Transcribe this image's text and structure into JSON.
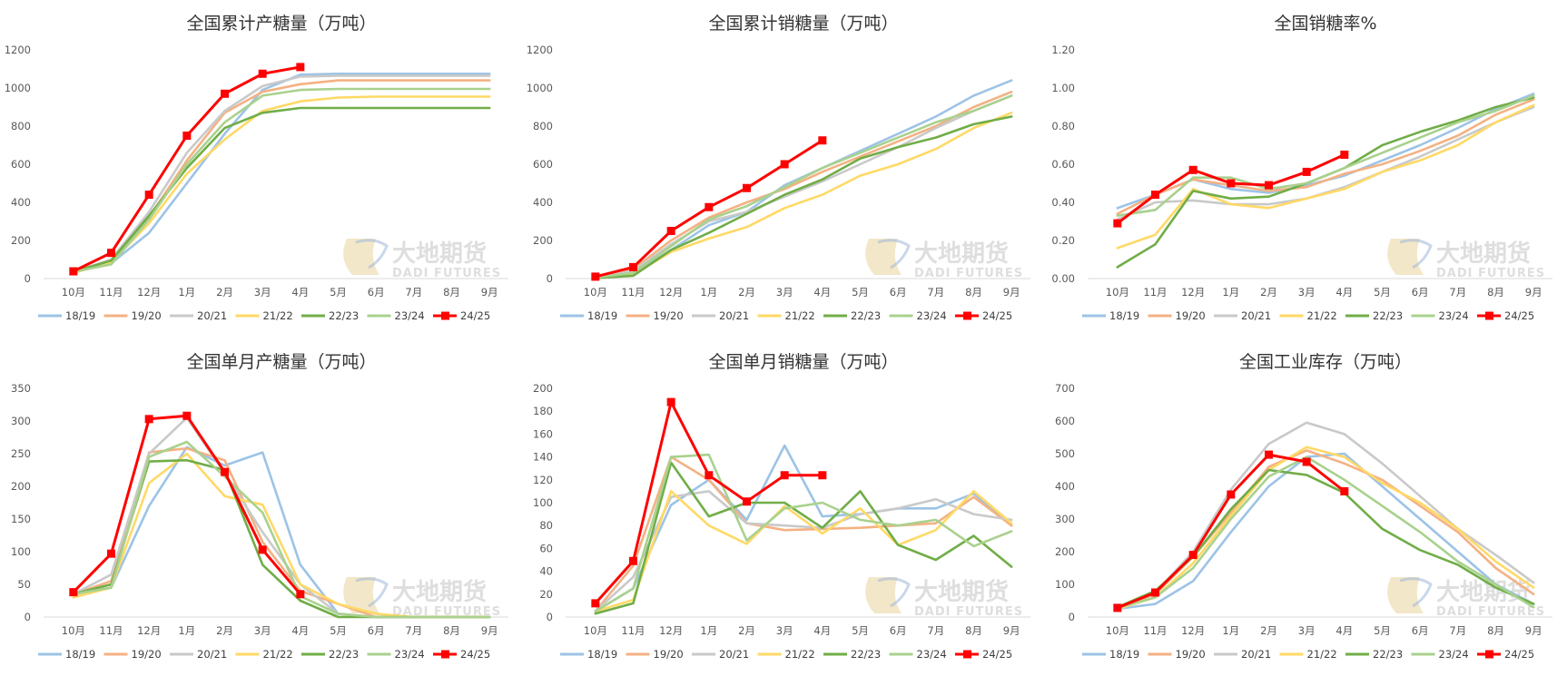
{
  "months": [
    "10月",
    "11月",
    "12月",
    "1月",
    "2月",
    "3月",
    "4月",
    "5月",
    "6月",
    "7月",
    "8月",
    "9月"
  ],
  "watermark": {
    "cn": "大地期货",
    "en": "DADI FUTURES"
  },
  "series_colors": {
    "18/19": "#9dc3e6",
    "19/20": "#f4b183",
    "20/21": "#c9c9c9",
    "21/22": "#ffd966",
    "22/23": "#70ad47",
    "23/24": "#a9d18e",
    "24/25": "#ff0000"
  },
  "chart_data": [
    {
      "type": "line",
      "title": "全国累计产糖量（万吨）",
      "ylim": [
        0,
        1200
      ],
      "yticks": [
        "0",
        "200",
        "400",
        "600",
        "800",
        "1000",
        "1200"
      ],
      "series": [
        {
          "name": "18/19",
          "values": [
            35,
            80,
            240,
            500,
            760,
            990,
            1070,
            1075,
            1075,
            1075,
            1075,
            1075
          ]
        },
        {
          "name": "19/20",
          "values": [
            35,
            95,
            320,
            620,
            870,
            980,
            1020,
            1040,
            1040,
            1040,
            1040,
            1040
          ]
        },
        {
          "name": "20/21",
          "values": [
            35,
            100,
            350,
            660,
            880,
            1010,
            1060,
            1065,
            1065,
            1065,
            1065,
            1065
          ]
        },
        {
          "name": "21/22",
          "values": [
            30,
            85,
            290,
            550,
            730,
            880,
            930,
            950,
            955,
            955,
            955,
            955
          ]
        },
        {
          "name": "22/23",
          "values": [
            35,
            95,
            330,
            580,
            790,
            870,
            895,
            895,
            895,
            895,
            895,
            895
          ]
        },
        {
          "name": "23/24",
          "values": [
            35,
            75,
            310,
            600,
            820,
            960,
            990,
            995,
            995,
            995,
            995,
            995
          ]
        },
        {
          "name": "24/25",
          "values": [
            38,
            135,
            440,
            750,
            970,
            1075,
            1110
          ]
        }
      ]
    },
    {
      "type": "line",
      "title": "全国累计销糖量（万吨）",
      "ylim": [
        0,
        1200
      ],
      "yticks": [
        "0",
        "200",
        "400",
        "600",
        "800",
        "1000",
        "1200"
      ],
      "series": [
        {
          "name": "18/19",
          "values": [
            5,
            25,
            150,
            280,
            350,
            490,
            580,
            670,
            760,
            850,
            960,
            1040
          ]
        },
        {
          "name": "19/20",
          "values": [
            5,
            50,
            200,
            320,
            400,
            470,
            560,
            640,
            720,
            800,
            900,
            980
          ]
        },
        {
          "name": "20/21",
          "values": [
            5,
            40,
            180,
            300,
            350,
            430,
            510,
            600,
            690,
            790,
            880,
            960
          ]
        },
        {
          "name": "21/22",
          "values": [
            5,
            20,
            140,
            210,
            270,
            370,
            440,
            540,
            600,
            680,
            790,
            870
          ]
        },
        {
          "name": "22/23",
          "values": [
            3,
            15,
            150,
            240,
            340,
            440,
            520,
            630,
            690,
            740,
            810,
            850
          ]
        },
        {
          "name": "23/24",
          "values": [
            5,
            30,
            170,
            310,
            380,
            480,
            580,
            660,
            740,
            820,
            880,
            960
          ]
        },
        {
          "name": "24/25",
          "values": [
            10,
            60,
            250,
            375,
            475,
            600,
            725
          ]
        }
      ]
    },
    {
      "type": "line",
      "title": "全国销糖率%",
      "ylim": [
        0,
        1.2
      ],
      "yticks": [
        "0.00",
        "0.20",
        "0.40",
        "0.60",
        "0.80",
        "1.00",
        "1.20"
      ],
      "series": [
        {
          "name": "18/19",
          "values": [
            0.37,
            0.44,
            0.52,
            0.47,
            0.45,
            0.49,
            0.54,
            0.62,
            0.7,
            0.79,
            0.89,
            0.97
          ]
        },
        {
          "name": "19/20",
          "values": [
            0.34,
            0.44,
            0.52,
            0.49,
            0.46,
            0.48,
            0.55,
            0.6,
            0.67,
            0.75,
            0.86,
            0.94
          ]
        },
        {
          "name": "20/21",
          "values": [
            0.31,
            0.4,
            0.41,
            0.39,
            0.39,
            0.42,
            0.48,
            0.56,
            0.64,
            0.73,
            0.82,
            0.9
          ]
        },
        {
          "name": "21/22",
          "values": [
            0.16,
            0.23,
            0.47,
            0.39,
            0.37,
            0.42,
            0.47,
            0.56,
            0.62,
            0.7,
            0.82,
            0.91
          ]
        },
        {
          "name": "22/23",
          "values": [
            0.06,
            0.18,
            0.46,
            0.42,
            0.43,
            0.5,
            0.58,
            0.7,
            0.77,
            0.83,
            0.9,
            0.95
          ]
        },
        {
          "name": "23/24",
          "values": [
            0.33,
            0.36,
            0.53,
            0.53,
            0.47,
            0.5,
            0.58,
            0.66,
            0.74,
            0.82,
            0.88,
            0.96
          ]
        },
        {
          "name": "24/25",
          "values": [
            0.29,
            0.44,
            0.57,
            0.5,
            0.49,
            0.56,
            0.65
          ]
        }
      ]
    },
    {
      "type": "line",
      "title": "全国单月产糖量（万吨）",
      "ylim": [
        0,
        350
      ],
      "yticks": [
        "0",
        "50",
        "100",
        "150",
        "200",
        "250",
        "300",
        "350"
      ],
      "series": [
        {
          "name": "18/19",
          "values": [
            35,
            45,
            170,
            260,
            232,
            252,
            80,
            5,
            0,
            0,
            0,
            0
          ]
        },
        {
          "name": "19/20",
          "values": [
            35,
            55,
            252,
            258,
            240,
            115,
            40,
            20,
            0,
            0,
            0,
            0
          ]
        },
        {
          "name": "20/21",
          "values": [
            35,
            65,
            250,
            305,
            220,
            130,
            50,
            5,
            0,
            0,
            0,
            0
          ]
        },
        {
          "name": "21/22",
          "values": [
            30,
            45,
            205,
            250,
            185,
            172,
            50,
            20,
            5,
            0,
            0,
            0
          ]
        },
        {
          "name": "22/23",
          "values": [
            35,
            50,
            238,
            240,
            225,
            80,
            25,
            0,
            0,
            0,
            0,
            0
          ]
        },
        {
          "name": "23/24",
          "values": [
            35,
            45,
            245,
            268,
            215,
            160,
            32,
            5,
            0,
            0,
            0,
            0
          ]
        },
        {
          "name": "24/25",
          "values": [
            38,
            97,
            303,
            308,
            222,
            103,
            35
          ]
        }
      ]
    },
    {
      "type": "line",
      "title": "全国单月销糖量（万吨）",
      "ylim": [
        0,
        200
      ],
      "yticks": [
        "0",
        "20",
        "40",
        "60",
        "80",
        "100",
        "120",
        "140",
        "160",
        "180",
        "200"
      ],
      "series": [
        {
          "name": "18/19",
          "values": [
            5,
            25,
            98,
            120,
            85,
            150,
            88,
            90,
            95,
            95,
            108,
            80
          ]
        },
        {
          "name": "19/20",
          "values": [
            5,
            45,
            140,
            120,
            82,
            76,
            77,
            78,
            80,
            82,
            105,
            80
          ]
        },
        {
          "name": "20/21",
          "values": [
            5,
            35,
            105,
            110,
            82,
            80,
            78,
            90,
            95,
            103,
            90,
            85
          ]
        },
        {
          "name": "21/22",
          "values": [
            5,
            15,
            110,
            80,
            64,
            97,
            73,
            95,
            63,
            76,
            110,
            82
          ]
        },
        {
          "name": "22/23",
          "values": [
            3,
            12,
            135,
            88,
            100,
            100,
            78,
            110,
            63,
            50,
            71,
            44
          ]
        },
        {
          "name": "23/24",
          "values": [
            5,
            25,
            140,
            142,
            67,
            95,
            100,
            85,
            80,
            85,
            62,
            75
          ]
        },
        {
          "name": "24/25",
          "values": [
            12,
            49,
            188,
            124,
            101,
            124,
            124
          ]
        }
      ]
    },
    {
      "type": "line",
      "title": "全国工业库存（万吨）",
      "ylim": [
        0,
        700
      ],
      "yticks": [
        "0",
        "100",
        "200",
        "300",
        "400",
        "500",
        "600",
        "700"
      ],
      "series": [
        {
          "name": "18/19",
          "values": [
            25,
            40,
            110,
            260,
            400,
            490,
            500,
            400,
            300,
            200,
            100,
            40
          ]
        },
        {
          "name": "19/20",
          "values": [
            28,
            70,
            185,
            320,
            460,
            510,
            470,
            420,
            340,
            260,
            150,
            70
          ]
        },
        {
          "name": "20/21",
          "values": [
            28,
            75,
            200,
            390,
            530,
            595,
            560,
            470,
            370,
            270,
            190,
            105
          ]
        },
        {
          "name": "21/22",
          "values": [
            25,
            60,
            165,
            310,
            450,
            520,
            490,
            410,
            350,
            270,
            170,
            90
          ]
        },
        {
          "name": "22/23",
          "values": [
            30,
            80,
            185,
            330,
            450,
            435,
            380,
            270,
            205,
            160,
            90,
            40
          ]
        },
        {
          "name": "23/24",
          "values": [
            28,
            60,
            150,
            300,
            430,
            490,
            420,
            340,
            260,
            170,
            100,
            30
          ]
        },
        {
          "name": "24/25",
          "values": [
            28,
            75,
            190,
            375,
            497,
            475,
            385
          ]
        }
      ]
    }
  ]
}
